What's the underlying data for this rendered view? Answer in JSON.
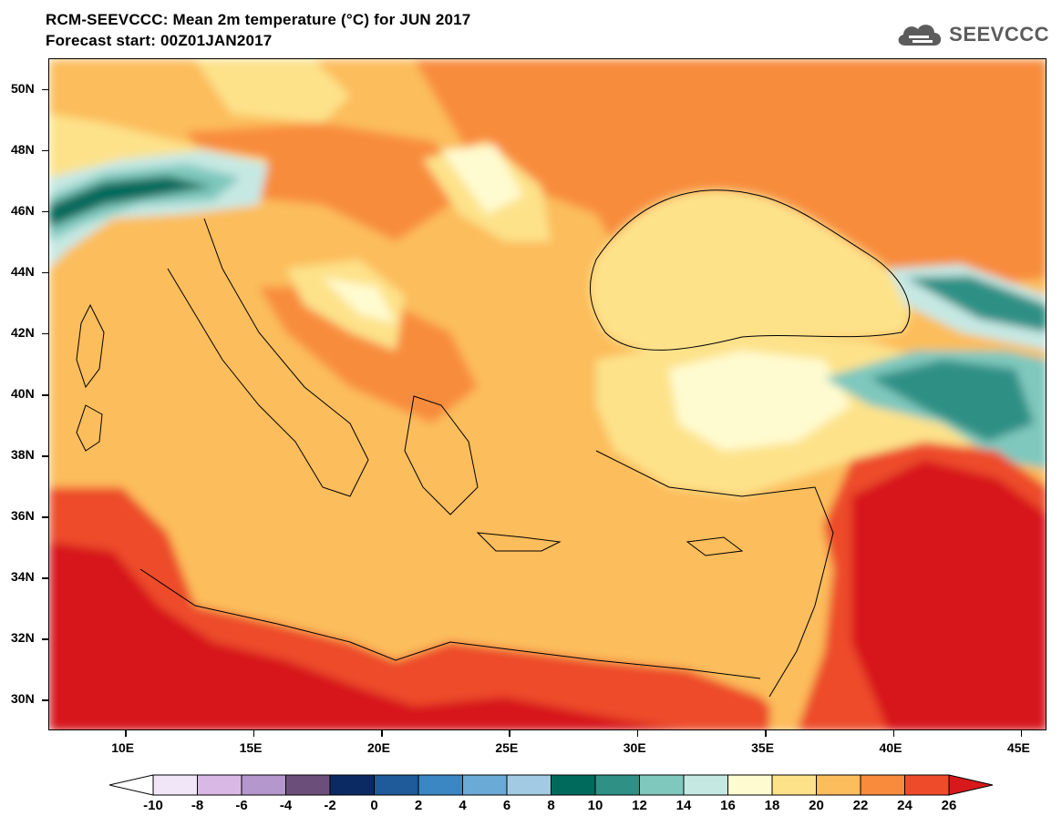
{
  "header": {
    "title": "RCM-SEEVCCC: Mean 2m temperature (°C) for JUN 2017",
    "subtitle": "Forecast start: 00Z01JAN2017",
    "logo_text": "SEEVCCC"
  },
  "map": {
    "variable": "Mean 2m temperature",
    "units": "°C",
    "lon_range": [
      7,
      46
    ],
    "lat_range": [
      29,
      51
    ],
    "lat_ticks": [
      "30N",
      "32N",
      "34N",
      "36N",
      "38N",
      "40N",
      "42N",
      "44N",
      "46N",
      "48N",
      "50N"
    ],
    "lon_ticks": [
      "10E",
      "15E",
      "20E",
      "25E",
      "30E",
      "35E",
      "40E",
      "45E"
    ]
  },
  "colorbar": {
    "labels": [
      "-10",
      "-8",
      "-6",
      "-4",
      "-2",
      "0",
      "2",
      "4",
      "6",
      "8",
      "10",
      "12",
      "14",
      "16",
      "18",
      "20",
      "22",
      "24",
      "26"
    ],
    "colors": [
      "#f0e6f7",
      "#d9b8e6",
      "#b497cc",
      "#6b4f7a",
      "#0b2a63",
      "#1f5a9a",
      "#3b87c3",
      "#6aaad6",
      "#a2cbe3",
      "#006a5c",
      "#2f9085",
      "#7fc8bd",
      "#c6e8e3",
      "#fffbd0",
      "#fde28a",
      "#fcbd5c",
      "#f88c3c",
      "#ed4b2a"
    ],
    "low_color": "#ffffff",
    "high_color": "#d7191c"
  }
}
